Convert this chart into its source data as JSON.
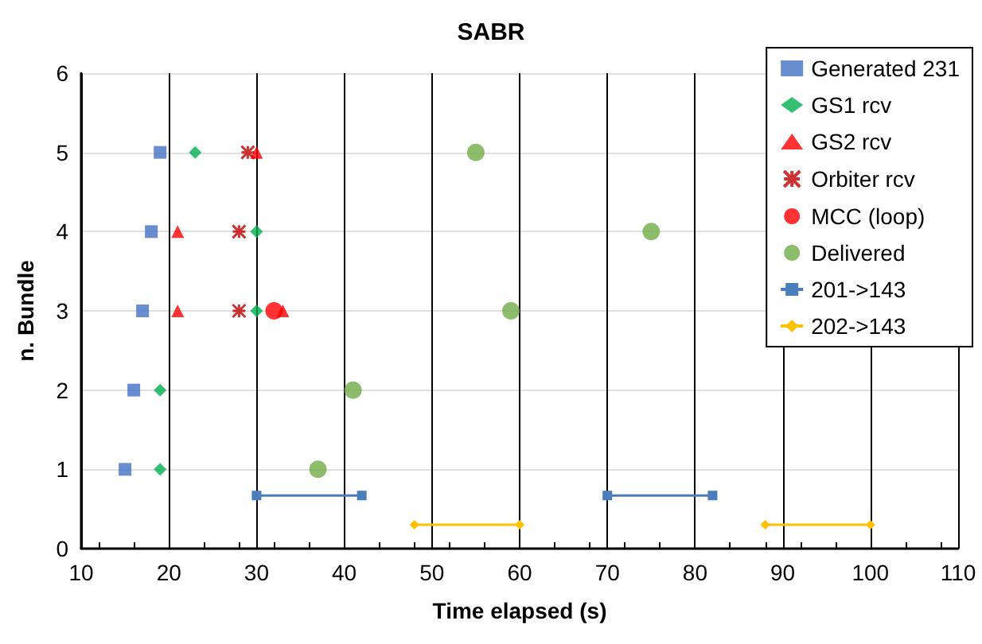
{
  "chart_data": {
    "type": "scatter",
    "title": "SABR",
    "xlabel": "Time elapsed (s)",
    "ylabel": "n. Bundle",
    "xlim": [
      10,
      110
    ],
    "xticks": [
      10,
      20,
      30,
      40,
      50,
      60,
      70,
      80,
      90,
      100,
      110
    ],
    "ylim": [
      0,
      6
    ],
    "yticks": [
      0,
      1,
      2,
      3,
      4,
      5,
      6
    ],
    "grid": true,
    "legend": "top right",
    "series": [
      {
        "name": "Generated 231",
        "color": "#4472c4",
        "marker": "square",
        "x": [
          19,
          18,
          17,
          16,
          15
        ],
        "values": [
          5,
          4,
          3,
          2,
          1
        ]
      },
      {
        "name": "GS1 rcv",
        "color": "#00b050",
        "marker": "diamond",
        "x": [
          23,
          30,
          30,
          19,
          19
        ],
        "values": [
          5,
          4,
          3,
          2,
          1
        ]
      },
      {
        "name": "GS2 rcv",
        "color": "#ff0000",
        "marker": "triangle",
        "x": [
          30,
          21,
          21,
          33
        ],
        "values": [
          5,
          4,
          3,
          3
        ]
      },
      {
        "name": "Orbiter rcv",
        "color": "#c00000",
        "marker": "cross",
        "x": [
          29,
          28,
          28
        ],
        "values": [
          5,
          4,
          3
        ]
      },
      {
        "name": "MCC (loop)",
        "color": "#ff0000",
        "marker": "circle",
        "x": [
          32
        ],
        "values": [
          3
        ]
      },
      {
        "name": "Delivered",
        "color": "#70ad47",
        "marker": "circle",
        "x": [
          55,
          75,
          59,
          41,
          37
        ],
        "values": [
          5,
          4,
          3,
          2,
          1
        ]
      },
      {
        "name": "201->143",
        "type": "line",
        "color": "#4a7ebb",
        "marker": "square",
        "line_style": "solid",
        "x": [
          30,
          42,
          56,
          70,
          82
        ],
        "values": [
          0.67,
          0.67,
          null,
          0.67,
          0.67
        ]
      },
      {
        "name": "202->143",
        "type": "line",
        "color": "#ffc000",
        "marker": "diamond",
        "line_style": "solid",
        "x": [
          48,
          60,
          74,
          88,
          100
        ],
        "values": [
          0.3,
          0.3,
          null,
          0.3,
          0.3
        ]
      }
    ]
  }
}
